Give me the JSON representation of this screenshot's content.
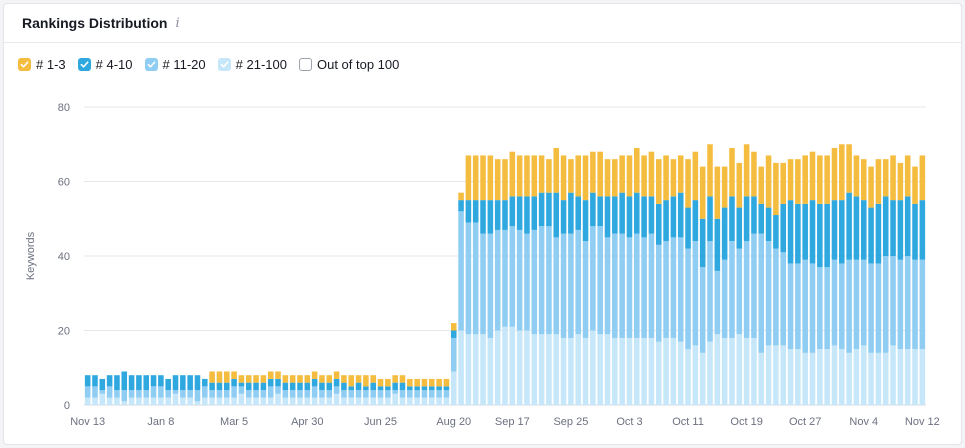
{
  "card": {
    "title": "Rankings Distribution",
    "info_icon": "info-icon"
  },
  "legend": [
    {
      "label": "# 1-3",
      "color": "#f5bd40",
      "checked": true
    },
    {
      "label": "# 4-10",
      "color": "#2fa8e0",
      "checked": true
    },
    {
      "label": "# 11-20",
      "color": "#8fcdf2",
      "checked": true
    },
    {
      "label": "# 21-100",
      "color": "#c6e7f9",
      "checked": true
    },
    {
      "label": "Out of top 100",
      "color": "#ffffff",
      "checked": false
    }
  ],
  "chart_data": {
    "type": "bar",
    "stacked": true,
    "xlabel": "",
    "ylabel": "Keywords",
    "ylim": [
      0,
      80
    ],
    "yticks": [
      0,
      20,
      40,
      60,
      80
    ],
    "xtick_labels": [
      "Nov 13",
      "Jan 8",
      "Mar 5",
      "Apr 30",
      "Jun 25",
      "Aug 20",
      "Sep 17",
      "Sep 25",
      "Oct 3",
      "Oct 11",
      "Oct 19",
      "Oct 27",
      "Nov 4",
      "Nov 12"
    ],
    "xtick_bar_index": [
      0,
      10,
      20,
      30,
      40,
      50,
      58,
      66,
      74,
      82,
      90,
      98,
      106,
      114
    ],
    "grid": true,
    "series": [
      {
        "name": "# 21-100",
        "color": "#c6e7f9",
        "values": [
          2,
          2,
          3,
          2,
          2,
          1,
          2,
          2,
          2,
          2,
          2,
          2,
          3,
          2,
          2,
          1,
          2,
          2,
          2,
          2,
          2,
          3,
          2,
          2,
          2,
          2,
          3,
          2,
          2,
          2,
          2,
          2,
          2,
          2,
          3,
          2,
          2,
          2,
          2,
          2,
          2,
          2,
          3,
          2,
          2,
          2,
          2,
          2,
          2,
          2,
          9,
          20,
          19,
          19,
          19,
          18,
          20,
          21,
          21,
          20,
          20,
          19,
          19,
          19,
          19,
          18,
          18,
          19,
          18,
          20,
          19,
          19,
          18,
          18,
          18,
          18,
          18,
          18,
          17,
          18,
          18,
          17,
          15,
          16,
          14,
          17,
          19,
          18,
          18,
          19,
          18,
          18,
          14,
          16,
          16,
          16,
          15,
          15,
          14,
          14,
          15,
          15,
          16,
          15,
          14,
          15,
          16,
          14,
          14,
          14,
          16,
          15,
          15,
          15,
          15
        ]
      },
      {
        "name": "# 11-20",
        "color": "#8fcdf2",
        "values": [
          3,
          3,
          1,
          3,
          2,
          3,
          2,
          2,
          2,
          3,
          3,
          2,
          1,
          2,
          2,
          3,
          3,
          2,
          2,
          2,
          3,
          2,
          2,
          2,
          2,
          3,
          2,
          2,
          2,
          2,
          2,
          3,
          2,
          2,
          2,
          2,
          2,
          2,
          2,
          2,
          2,
          2,
          1,
          2,
          2,
          2,
          2,
          2,
          2,
          2,
          9,
          32,
          30,
          30,
          27,
          28,
          27,
          26,
          27,
          27,
          26,
          28,
          29,
          29,
          26,
          28,
          28,
          28,
          26,
          28,
          29,
          26,
          28,
          28,
          27,
          28,
          27,
          28,
          26,
          26,
          27,
          28,
          27,
          28,
          23,
          27,
          17,
          21,
          26,
          23,
          26,
          28,
          32,
          28,
          26,
          25,
          23,
          23,
          25,
          24,
          22,
          22,
          23,
          23,
          25,
          24,
          23,
          24,
          24,
          26,
          24,
          24,
          25,
          24,
          24
        ]
      },
      {
        "name": "# 4-10",
        "color": "#2fa8e0",
        "values": [
          3,
          3,
          3,
          3,
          4,
          5,
          4,
          4,
          4,
          3,
          3,
          3,
          4,
          4,
          4,
          4,
          2,
          2,
          2,
          2,
          2,
          1,
          2,
          2,
          2,
          2,
          2,
          2,
          2,
          2,
          2,
          2,
          2,
          2,
          2,
          2,
          1,
          2,
          1,
          2,
          1,
          1,
          2,
          2,
          1,
          1,
          1,
          1,
          1,
          1,
          2,
          3,
          6,
          6,
          9,
          9,
          8,
          8,
          8,
          9,
          10,
          9,
          9,
          9,
          12,
          9,
          11,
          9,
          11,
          9,
          8,
          11,
          10,
          11,
          11,
          11,
          11,
          10,
          11,
          11,
          11,
          12,
          11,
          11,
          13,
          12,
          14,
          14,
          12,
          11,
          12,
          10,
          8,
          9,
          9,
          13,
          17,
          16,
          15,
          17,
          17,
          17,
          16,
          17,
          18,
          17,
          16,
          15,
          16,
          16,
          15,
          16,
          16,
          15,
          16
        ]
      },
      {
        "name": "# 1-3",
        "color": "#f5bd40",
        "values": [
          0,
          0,
          0,
          0,
          0,
          0,
          0,
          0,
          0,
          0,
          0,
          0,
          0,
          0,
          0,
          0,
          0,
          3,
          3,
          3,
          2,
          2,
          2,
          2,
          2,
          2,
          2,
          2,
          2,
          2,
          2,
          2,
          2,
          2,
          2,
          2,
          3,
          2,
          3,
          2,
          2,
          2,
          2,
          2,
          2,
          2,
          2,
          2,
          2,
          2,
          2,
          2,
          12,
          12,
          12,
          12,
          11,
          11,
          12,
          11,
          11,
          11,
          10,
          9,
          12,
          12,
          9,
          11,
          12,
          11,
          12,
          10,
          10,
          10,
          11,
          12,
          11,
          12,
          12,
          12,
          10,
          10,
          13,
          13,
          14,
          14,
          14,
          11,
          13,
          12,
          14,
          12,
          10,
          14,
          14,
          11,
          11,
          12,
          13,
          13,
          13,
          13,
          14,
          15,
          13,
          11,
          11,
          11,
          12,
          10,
          12,
          10,
          11,
          10,
          12
        ]
      }
    ]
  }
}
